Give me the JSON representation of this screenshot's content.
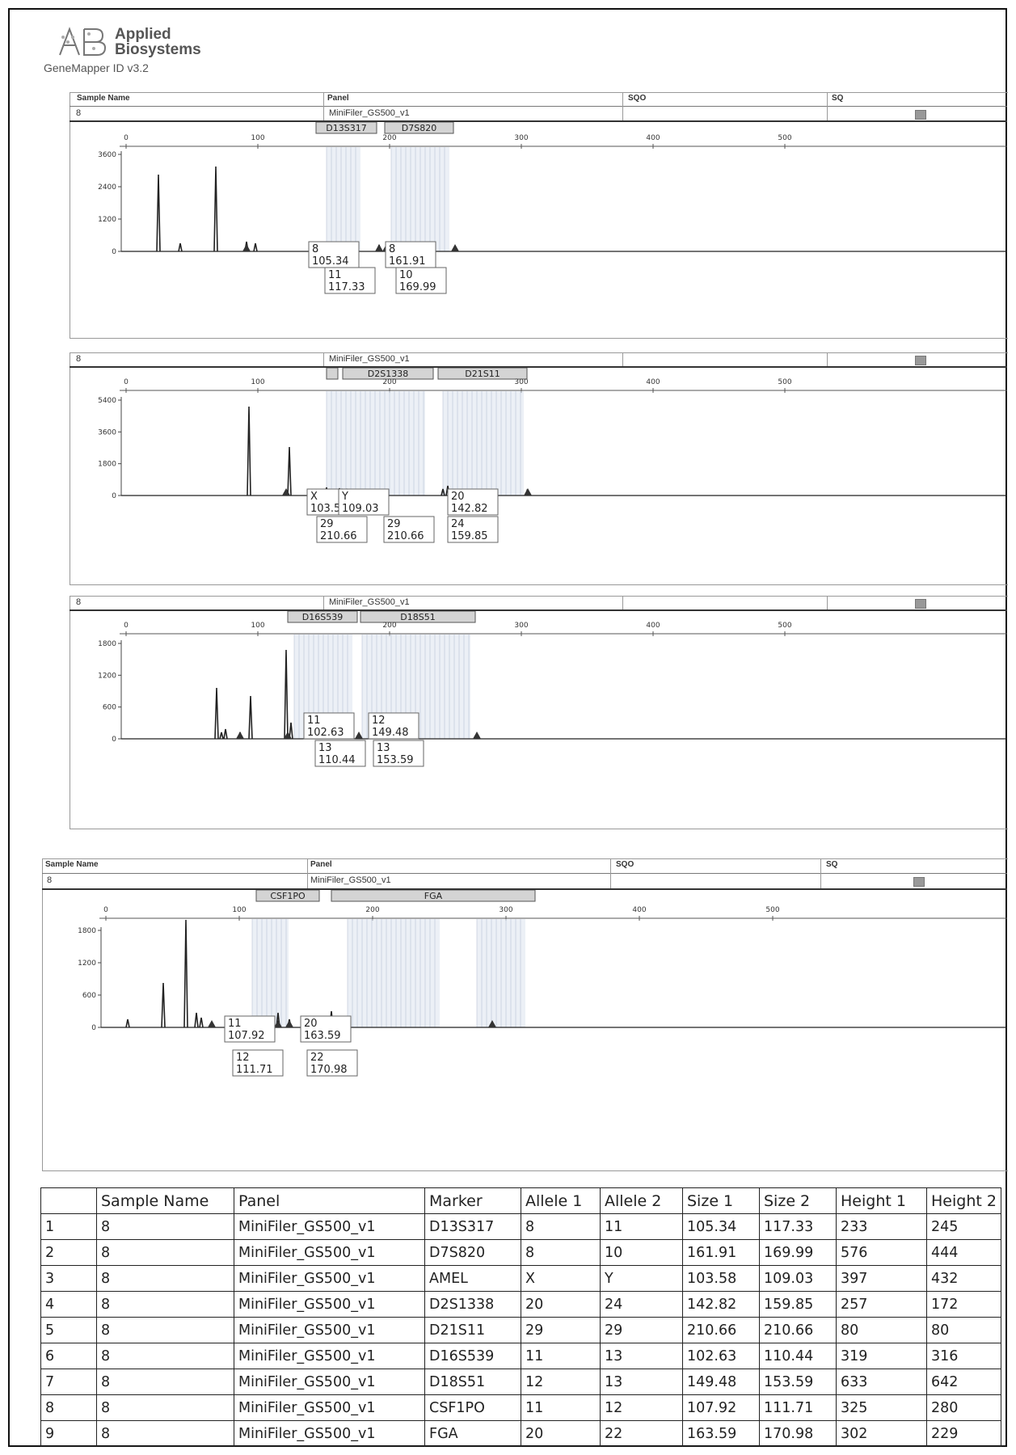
{
  "app": {
    "brand_line1": "Applied",
    "brand_line2": "Biosystems",
    "version": "GeneMapper ID v3.2"
  },
  "columns": {
    "sample_name": "Sample Name",
    "panel": "Panel",
    "sqo": "SQO",
    "sq": "SQ"
  },
  "panels": [
    {
      "sample": "8",
      "panel": "MiniFiler_GS500_v1",
      "show_header": true,
      "markers": [
        "D13S317",
        "D7S820"
      ],
      "x_ticks": [
        "0",
        "100",
        "200",
        "300",
        "400",
        "500"
      ],
      "y_ticks": [
        "0",
        "1200",
        "2400",
        "3600"
      ],
      "allele_labels": [
        {
          "allele": "8",
          "size": "105.34"
        },
        {
          "allele": "11",
          "size": "117.33"
        },
        {
          "allele": "8",
          "size": "161.91"
        },
        {
          "allele": "10",
          "size": "169.99"
        }
      ]
    },
    {
      "sample": "8",
      "panel": "MiniFiler_GS500_v1",
      "show_header": false,
      "markers": [
        "",
        "D2S1338",
        "D21S11"
      ],
      "x_ticks": [
        "0",
        "100",
        "200",
        "300",
        "400",
        "500"
      ],
      "y_ticks": [
        "0",
        "1800",
        "3600",
        "5400"
      ],
      "allele_labels": [
        {
          "allele": "X",
          "size": "103.58"
        },
        {
          "allele": "Y",
          "size": "109.03"
        },
        {
          "allele": "20",
          "size": "142.82"
        },
        {
          "allele": "24",
          "size": "159.85"
        },
        {
          "allele": "29",
          "size": "210.66"
        },
        {
          "allele": "29",
          "size": "210.66"
        }
      ]
    },
    {
      "sample": "8",
      "panel": "MiniFiler_GS500_v1",
      "show_header": false,
      "markers": [
        "D16S539",
        "D18S51"
      ],
      "x_ticks": [
        "0",
        "100",
        "200",
        "300",
        "400",
        "500"
      ],
      "y_ticks": [
        "0",
        "600",
        "1200",
        "1800"
      ],
      "allele_labels": [
        {
          "allele": "11",
          "size": "102.63"
        },
        {
          "allele": "13",
          "size": "110.44"
        },
        {
          "allele": "12",
          "size": "149.48"
        },
        {
          "allele": "13",
          "size": "153.59"
        }
      ]
    },
    {
      "sample": "8",
      "panel": "MiniFiler_GS500_v1",
      "show_header": true,
      "markers": [
        "CSF1PO",
        "FGA"
      ],
      "x_ticks": [
        "0",
        "100",
        "200",
        "300",
        "400",
        "500"
      ],
      "y_ticks": [
        "0",
        "600",
        "1200",
        "1800"
      ],
      "allele_labels": [
        {
          "allele": "11",
          "size": "107.92"
        },
        {
          "allele": "12",
          "size": "111.71"
        },
        {
          "allele": "20",
          "size": "163.59"
        },
        {
          "allele": "22",
          "size": "170.98"
        }
      ]
    }
  ],
  "table": {
    "headers": [
      "",
      "Sample Name",
      "Panel",
      "Marker",
      "Allele 1",
      "Allele 2",
      "Size 1",
      "Size 2",
      "Height 1",
      "Height 2"
    ],
    "rows": [
      [
        "1",
        "8",
        "MiniFiler_GS500_v1",
        "D13S317",
        "8",
        "11",
        "105.34",
        "117.33",
        "233",
        "245"
      ],
      [
        "2",
        "8",
        "MiniFiler_GS500_v1",
        "D7S820",
        "8",
        "10",
        "161.91",
        "169.99",
        "576",
        "444"
      ],
      [
        "3",
        "8",
        "MiniFiler_GS500_v1",
        "AMEL",
        "X",
        "Y",
        "103.58",
        "109.03",
        "397",
        "432"
      ],
      [
        "4",
        "8",
        "MiniFiler_GS500_v1",
        "D2S1338",
        "20",
        "24",
        "142.82",
        "159.85",
        "257",
        "172"
      ],
      [
        "5",
        "8",
        "MiniFiler_GS500_v1",
        "D21S11",
        "29",
        "29",
        "210.66",
        "210.66",
        "80",
        "80"
      ],
      [
        "6",
        "8",
        "MiniFiler_GS500_v1",
        "D16S539",
        "11",
        "13",
        "102.63",
        "110.44",
        "319",
        "316"
      ],
      [
        "7",
        "8",
        "MiniFiler_GS500_v1",
        "D18S51",
        "12",
        "13",
        "149.48",
        "153.59",
        "633",
        "642"
      ],
      [
        "8",
        "8",
        "MiniFiler_GS500_v1",
        "CSF1PO",
        "11",
        "12",
        "107.92",
        "111.71",
        "325",
        "280"
      ],
      [
        "9",
        "8",
        "MiniFiler_GS500_v1",
        "FGA",
        "20",
        "22",
        "163.59",
        "170.98",
        "302",
        "229"
      ]
    ]
  },
  "colors": {
    "bin_shade": "#dde4ef",
    "bin_line": "#b8c2d6",
    "trace": "#222222",
    "marker_box": "#d4d4d4"
  }
}
